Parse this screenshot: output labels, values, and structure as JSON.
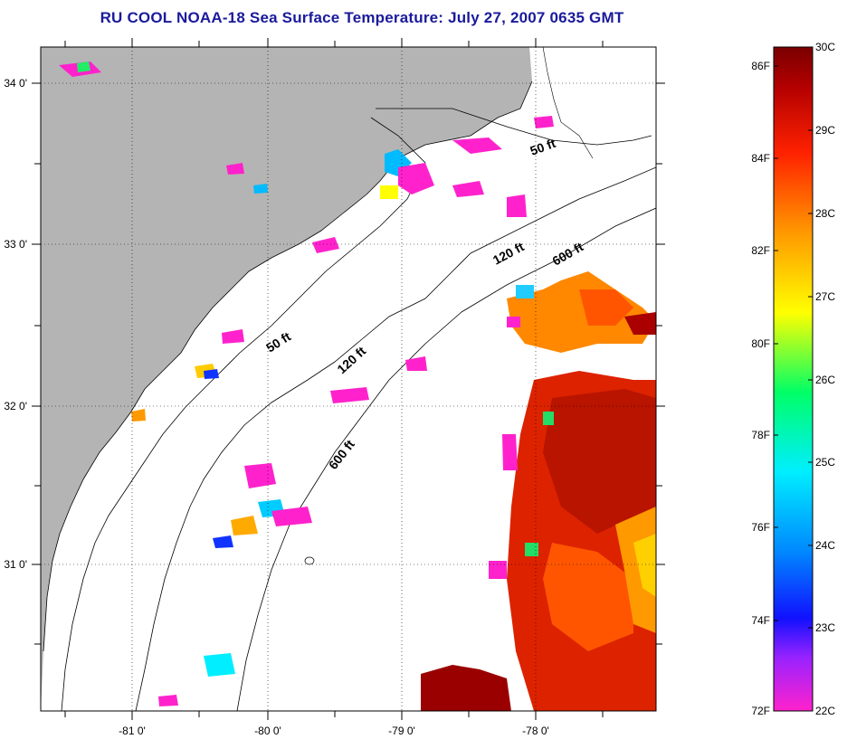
{
  "title": "RU COOL  NOAA-18  Sea Surface Temperature:  July 27, 2007 0635 GMT",
  "map": {
    "lat_ticks": [
      "34 0'",
      "33 0'",
      "32 0'",
      "31 0'"
    ],
    "lon_ticks": [
      "-81 0'",
      "-80 0'",
      "-79 0'",
      "-78 0'"
    ],
    "contour_labels": [
      "50 ft",
      "120 ft",
      "600 ft",
      "50 ft",
      "120 ft",
      "600 ft"
    ]
  },
  "colorbar": {
    "fahrenheit": [
      "86F",
      "84F",
      "82F",
      "80F",
      "78F",
      "76F",
      "74F",
      "72F"
    ],
    "celsius": [
      "30C",
      "29C",
      "28C",
      "27C",
      "26C",
      "25C",
      "24C",
      "23C",
      "22C"
    ],
    "colors": [
      "#ff22cc",
      "#9922ff",
      "#1111ff",
      "#0088ff",
      "#00eeff",
      "#00ff66",
      "#ffff00",
      "#ff9900",
      "#ff2200",
      "#b30000",
      "#7a0000"
    ]
  }
}
